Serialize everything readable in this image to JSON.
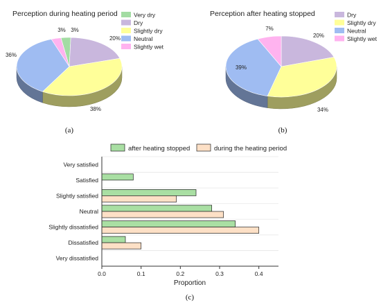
{
  "chart_data": [
    {
      "type": "pie",
      "title": "Perception during heating period",
      "caption": "(a)",
      "series": [
        {
          "name": "Very dry",
          "value": 3,
          "label": "3%",
          "color": "#a3dca3"
        },
        {
          "name": "Dry",
          "value": 20,
          "label": "20%",
          "color": "#c9b7dd"
        },
        {
          "name": "Slightly dry",
          "value": 38,
          "label": "38%",
          "color": "#ffff99"
        },
        {
          "name": "Neutral",
          "value": 36,
          "label": "36%",
          "color": "#9fbcf2"
        },
        {
          "name": "Slightly wet",
          "value": 3,
          "label": "3%",
          "color": "#ffb3ef"
        }
      ]
    },
    {
      "type": "pie",
      "title": "Perception after heating stopped",
      "caption": "(b)",
      "series": [
        {
          "name": "Dry",
          "value": 20,
          "label": "20%",
          "color": "#c9b7dd"
        },
        {
          "name": "Slightly dry",
          "value": 34,
          "label": "34%",
          "color": "#ffff99"
        },
        {
          "name": "Neutral",
          "value": 39,
          "label": "39%",
          "color": "#9fbcf2"
        },
        {
          "name": "Slightly wet",
          "value": 7,
          "label": "7%",
          "color": "#ffb3ef"
        }
      ]
    },
    {
      "type": "bar",
      "orientation": "horizontal",
      "caption": "(c)",
      "categories": [
        "Very satisfied",
        "Satisfied",
        "Slightly satisfied",
        "Neutral",
        "Slightly dissatisfied",
        "Dissatisfied",
        "Very dissatisfied"
      ],
      "series": [
        {
          "name": "after heating stopped",
          "color": "#a9dfa3",
          "values": [
            0,
            0.08,
            0.24,
            0.28,
            0.34,
            0.06,
            0
          ]
        },
        {
          "name": "during the heating period",
          "color": "#fde0c6",
          "values": [
            0,
            0,
            0.19,
            0.31,
            0.4,
            0.1,
            0
          ]
        }
      ],
      "xlabel": "Proportion",
      "xlim": [
        0,
        0.45
      ],
      "xticks": [
        "0.0",
        "0.1",
        "0.2",
        "0.3",
        "0.4"
      ],
      "legend": "top",
      "grid": true
    }
  ]
}
